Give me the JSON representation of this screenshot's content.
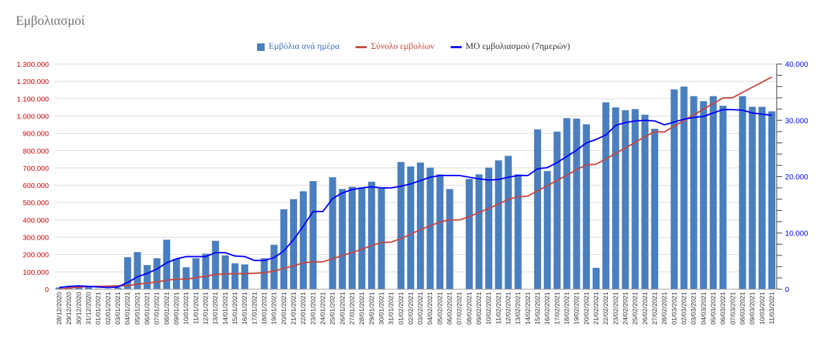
{
  "chart_data": {
    "type": "bar+line",
    "title": "Εμβολιασμοί",
    "legend_position": "top-center",
    "grid": true,
    "colors": {
      "bars": "#4a7fbf",
      "total_line": "#c9463d",
      "avg_line": "#0000ff",
      "left_axis": "#cc0000",
      "right_axis": "#0000ff"
    },
    "left_axis": {
      "ylim": [
        0,
        1300000
      ],
      "ticks": [
        "0",
        "100.000",
        "200.000",
        "300.000",
        "400.000",
        "500.000",
        "600.000",
        "700.000",
        "800.000",
        "900.000",
        "1.000.000",
        "1.100.000",
        "1.200.000",
        "1.300.000"
      ]
    },
    "right_axis": {
      "ylim": [
        0,
        40000
      ],
      "ticks": [
        "0",
        "10.000",
        "20.000",
        "30.000",
        "40.000"
      ]
    },
    "categories": [
      "28/12/2020",
      "29/12/2020",
      "30/12/2020",
      "31/12/2020",
      "01/01/2021",
      "02/01/2021",
      "03/01/2021",
      "04/01/2021",
      "05/01/2021",
      "06/01/2021",
      "07/01/2021",
      "08/01/2021",
      "09/01/2021",
      "10/01/2021",
      "11/01/2021",
      "12/01/2021",
      "13/01/2021",
      "14/01/2021",
      "15/01/2021",
      "16/01/2021",
      "17/01/2021",
      "18/01/2021",
      "19/01/2021",
      "20/01/2021",
      "21/01/2021",
      "22/01/2021",
      "23/01/2021",
      "24/01/2021",
      "25/01/2021",
      "26/01/2021",
      "27/01/2021",
      "28/01/2021",
      "29/01/2021",
      "30/01/2021",
      "31/01/2021",
      "01/02/2021",
      "02/02/2021",
      "03/02/2021",
      "04/02/2021",
      "05/02/2021",
      "06/02/2021",
      "07/02/2021",
      "08/02/2021",
      "09/02/2021",
      "10/02/2021",
      "11/02/2021",
      "12/02/2021",
      "13/02/2021",
      "14/02/2021",
      "15/02/2021",
      "16/02/2021",
      "17/02/2021",
      "18/02/2021",
      "19/02/2021",
      "20/02/2021",
      "21/02/2021",
      "22/02/2021",
      "23/02/2021",
      "24/02/2021",
      "25/02/2021",
      "26/02/2021",
      "27/02/2021",
      "28/02/2021",
      "01/03/2021",
      "02/03/2021",
      "03/03/2021",
      "04/03/2021",
      "05/03/2021",
      "06/03/2021",
      "07/03/2021",
      "08/03/2021",
      "09/03/2021",
      "10/03/2021",
      "11/03/2021"
    ],
    "series": [
      {
        "name": "Εμβόλια ανά ημέρα",
        "type": "bar",
        "axis": "right",
        "values": [
          300,
          500,
          600,
          400,
          100,
          100,
          300,
          5700,
          6600,
          4300,
          5500,
          8800,
          5400,
          3900,
          5500,
          6300,
          8600,
          6000,
          4600,
          4400,
          0,
          5500,
          7900,
          14200,
          16000,
          17400,
          19200,
          0,
          19900,
          17800,
          18200,
          18100,
          19100,
          17900,
          0,
          22600,
          21800,
          22500,
          21600,
          20400,
          17800,
          0,
          19600,
          20400,
          21600,
          22900,
          23700,
          20400,
          0,
          28400,
          21000,
          28000,
          30400,
          30300,
          29300,
          3800,
          33200,
          32300,
          31800,
          32000,
          31000,
          28500,
          0,
          35500,
          36000,
          34300,
          33400,
          34300,
          32600,
          0,
          34300,
          32400,
          32400,
          31600
        ]
      },
      {
        "name": "Σύνολο εμβολίων",
        "type": "line",
        "axis": "left",
        "values": [
          0,
          8000,
          12000,
          16000,
          17000,
          18000,
          20000,
          20000,
          30000,
          35000,
          42000,
          52000,
          58000,
          58000,
          66000,
          75000,
          85000,
          88000,
          90000,
          90000,
          92000,
          95000,
          105000,
          120000,
          135000,
          152000,
          158000,
          158000,
          176000,
          194000,
          212000,
          230000,
          252000,
          270000,
          272000,
          292000,
          318000,
          344000,
          366000,
          388000,
          400000,
          400000,
          420000,
          443000,
          466000,
          492000,
          518000,
          534000,
          538000,
          568000,
          598000,
          628000,
          658000,
          690000,
          718000,
          722000,
          752000,
          784000,
          816000,
          848000,
          880000,
          910000,
          908000,
          942000,
          974000,
          1006000,
          1040000,
          1072000,
          1104000,
          1106000,
          1136000,
          1166000,
          1196000,
          1225000
        ]
      },
      {
        "name": "ΜΟ εμβολιασμού (7ημερών)",
        "type": "line",
        "axis": "right",
        "values": [
          300,
          500,
          600,
          500,
          400,
          300,
          400,
          1200,
          2200,
          2800,
          3600,
          4700,
          5400,
          5800,
          5800,
          5800,
          6500,
          6500,
          5900,
          5800,
          5100,
          5100,
          5600,
          6800,
          8800,
          11200,
          13800,
          13800,
          16100,
          17100,
          17700,
          18000,
          18200,
          18000,
          18000,
          18300,
          18700,
          19300,
          19900,
          20200,
          20200,
          20200,
          19900,
          19600,
          19400,
          19500,
          19900,
          20200,
          20200,
          21400,
          21600,
          22500,
          23600,
          24700,
          26000,
          26600,
          27400,
          29100,
          29600,
          29900,
          30000,
          29900,
          29200,
          29700,
          30200,
          30500,
          30700,
          31300,
          31900,
          31900,
          31800,
          31300,
          31100,
          30900
        ]
      }
    ]
  }
}
